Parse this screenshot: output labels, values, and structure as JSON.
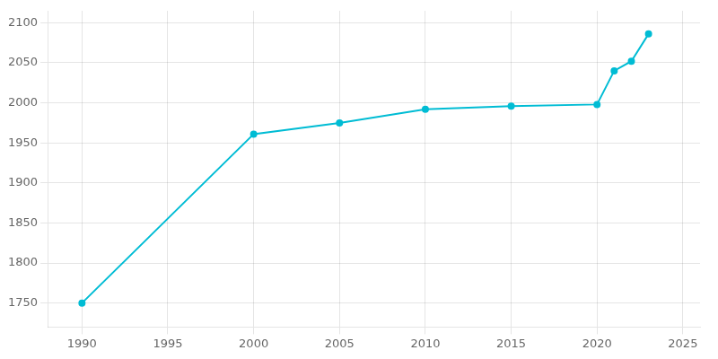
{
  "chart_data": {
    "type": "line",
    "x": [
      1990,
      2000,
      2005,
      2010,
      2015,
      2020,
      2021,
      2022,
      2023
    ],
    "values": [
      1750,
      1961,
      1975,
      1992,
      1996,
      1998,
      2040,
      2052,
      2086
    ],
    "color": "#00bcd4",
    "marker": "o",
    "xlim": [
      1988,
      2026
    ],
    "ylim": [
      1720,
      2115
    ],
    "xticks": [
      1990,
      1995,
      2000,
      2005,
      2010,
      2015,
      2020,
      2025
    ],
    "yticks": [
      1750,
      1800,
      1850,
      1900,
      1950,
      2000,
      2050,
      2100
    ],
    "grid": true
  }
}
